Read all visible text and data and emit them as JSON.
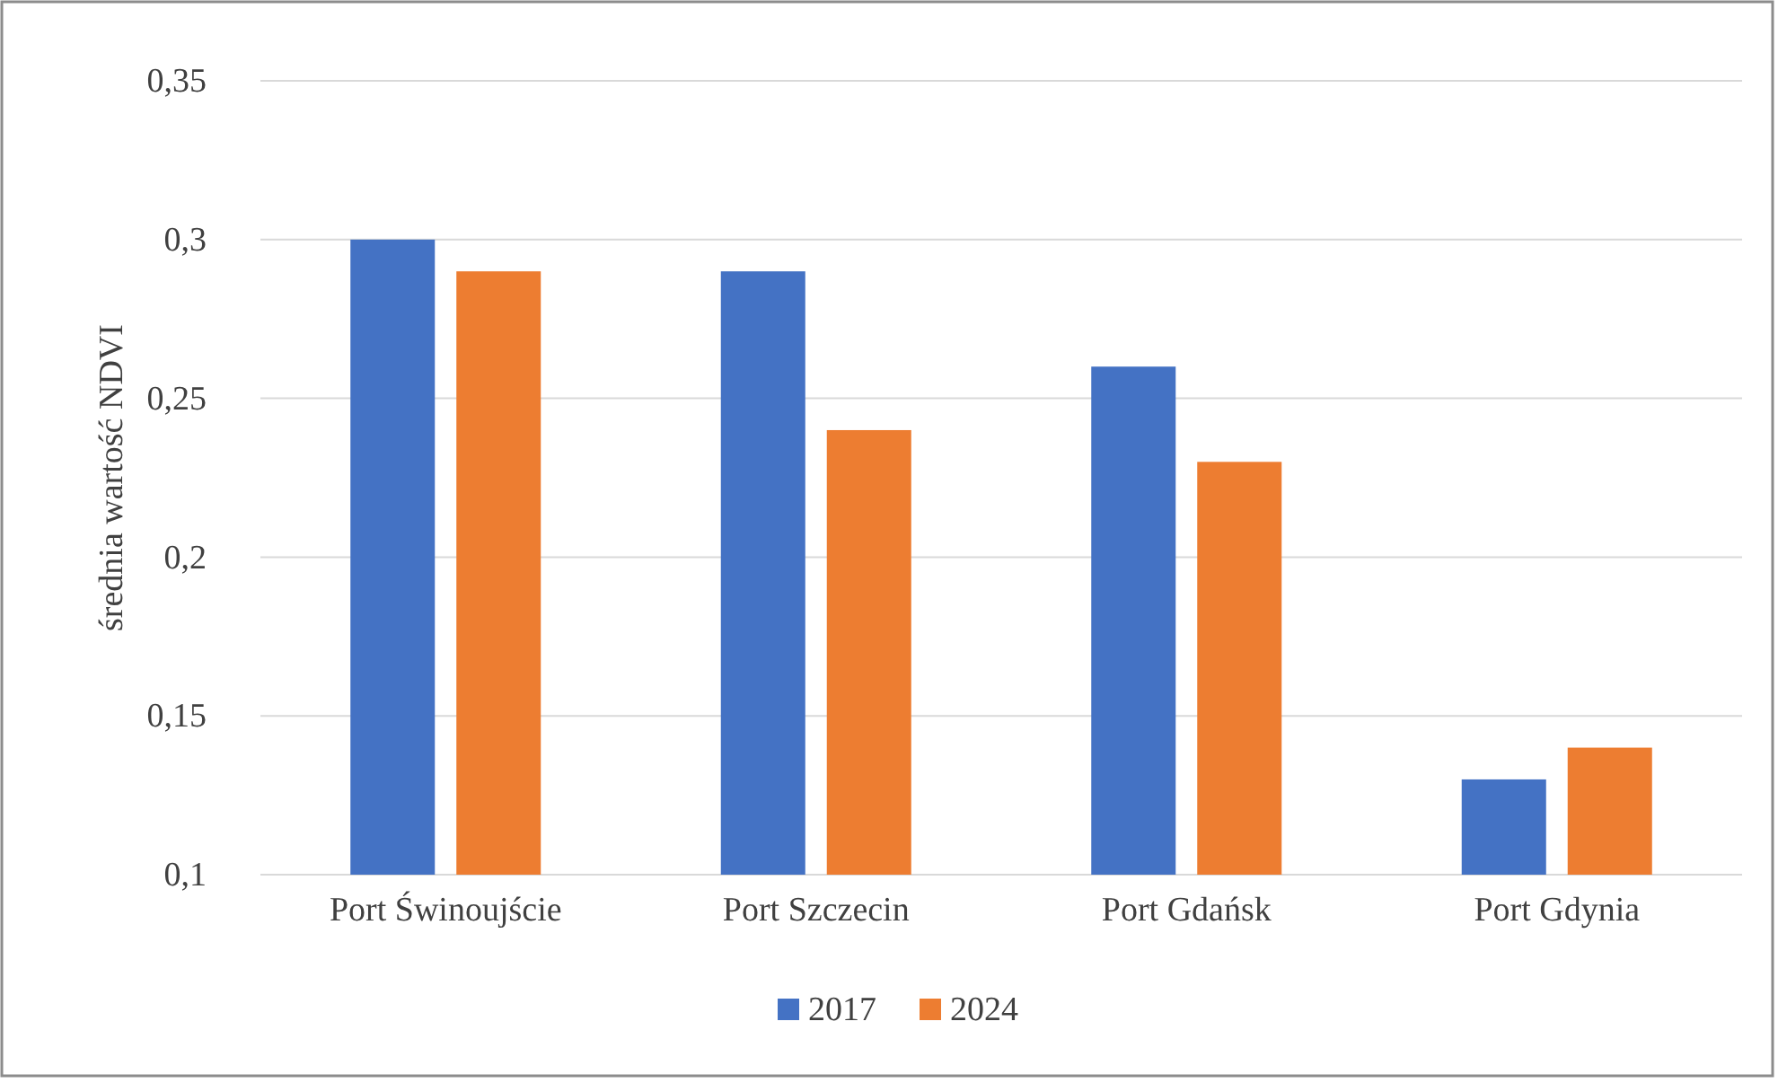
{
  "chart_data": {
    "type": "bar",
    "ylabel": "średnia wartość NDVI",
    "categories": [
      "Port Świnoujście",
      "Port Szczecin",
      "Port Gdańsk",
      "Port Gdynia"
    ],
    "series": [
      {
        "name": "2017",
        "color": "#4472c4",
        "values": [
          0.3,
          0.29,
          0.26,
          0.13
        ]
      },
      {
        "name": "2024",
        "color": "#ed7d31",
        "values": [
          0.29,
          0.24,
          0.23,
          0.14
        ]
      }
    ],
    "ylim": [
      0.1,
      0.35
    ],
    "yticks": [
      {
        "value": 0.1,
        "label": "0,1"
      },
      {
        "value": 0.15,
        "label": "0,15"
      },
      {
        "value": 0.2,
        "label": "0,2"
      },
      {
        "value": 0.25,
        "label": "0,25"
      },
      {
        "value": 0.3,
        "label": "0,3"
      },
      {
        "value": 0.35,
        "label": "0,35"
      }
    ],
    "grid": "y",
    "legend": "bottom"
  }
}
